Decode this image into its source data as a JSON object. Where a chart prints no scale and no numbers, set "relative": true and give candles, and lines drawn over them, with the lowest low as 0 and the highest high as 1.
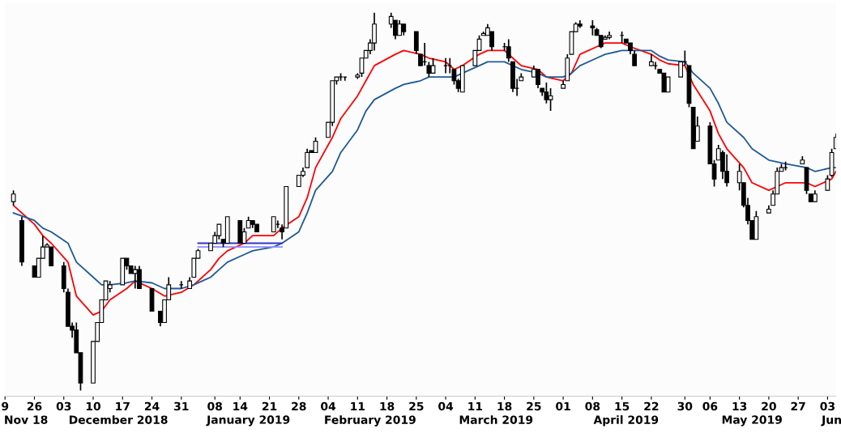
{
  "chart_data": {
    "type": "candlestick",
    "relative": true,
    "color": "#000000",
    "tick_labels": "x",
    "x": [
      "2018-11-21",
      "2018-11-23",
      "2018-11-26",
      "2018-11-27",
      "2018-11-28",
      "2018-11-29",
      "2018-11-30",
      "2018-12-03",
      "2018-12-04",
      "2018-12-05",
      "2018-12-06",
      "2018-12-07",
      "2018-12-10",
      "2018-12-11",
      "2018-12-12",
      "2018-12-13",
      "2018-12-14",
      "2018-12-17",
      "2018-12-18",
      "2018-12-19",
      "2018-12-20",
      "2018-12-21",
      "2018-12-24",
      "2018-12-26",
      "2018-12-27",
      "2018-12-28",
      "2018-12-31",
      "2019-01-02",
      "2019-01-03",
      "2019-01-04",
      "2019-01-07",
      "2019-01-08",
      "2019-01-09",
      "2019-01-10",
      "2019-01-11",
      "2019-01-14",
      "2019-01-15",
      "2019-01-16",
      "2019-01-17",
      "2019-01-18",
      "2019-01-22",
      "2019-01-23",
      "2019-01-24",
      "2019-01-25",
      "2019-01-28",
      "2019-01-29",
      "2019-01-30",
      "2019-01-31",
      "2019-02-01",
      "2019-02-04",
      "2019-02-05",
      "2019-02-06",
      "2019-02-07",
      "2019-02-08",
      "2019-02-11",
      "2019-02-12",
      "2019-02-13",
      "2019-02-14",
      "2019-02-15",
      "2019-02-19",
      "2019-02-20",
      "2019-02-21",
      "2019-02-22",
      "2019-02-25",
      "2019-02-26",
      "2019-02-27",
      "2019-02-28",
      "2019-03-01",
      "2019-03-04",
      "2019-03-05",
      "2019-03-06",
      "2019-03-07",
      "2019-03-08",
      "2019-03-11",
      "2019-03-12",
      "2019-03-13",
      "2019-03-14",
      "2019-03-15",
      "2019-03-18",
      "2019-03-19",
      "2019-03-20",
      "2019-03-21",
      "2019-03-22",
      "2019-03-25",
      "2019-03-26",
      "2019-03-27",
      "2019-03-28",
      "2019-03-29",
      "2019-04-01",
      "2019-04-02",
      "2019-04-03",
      "2019-04-04",
      "2019-04-05",
      "2019-04-08",
      "2019-04-09",
      "2019-04-10",
      "2019-04-11",
      "2019-04-12",
      "2019-04-15",
      "2019-04-16",
      "2019-04-17",
      "2019-04-18",
      "2019-04-22",
      "2019-04-23",
      "2019-04-24",
      "2019-04-25",
      "2019-04-26",
      "2019-04-29",
      "2019-04-30",
      "2019-05-01",
      "2019-05-02",
      "2019-05-03",
      "2019-05-06",
      "2019-05-07",
      "2019-05-08",
      "2019-05-09",
      "2019-05-10",
      "2019-05-13",
      "2019-05-14",
      "2019-05-15",
      "2019-05-16",
      "2019-05-17",
      "2019-05-20",
      "2019-05-21",
      "2019-05-22",
      "2019-05-23",
      "2019-05-24",
      "2019-05-28",
      "2019-05-29",
      "2019-05-30",
      "2019-05-31",
      "2019-06-03",
      "2019-06-04",
      "2019-06-05"
    ],
    "ohlc": [
      [
        0.5,
        0.53,
        0.49,
        0.52
      ],
      [
        0.45,
        0.46,
        0.33,
        0.34
      ],
      [
        0.33,
        0.33,
        0.3,
        0.3
      ],
      [
        0.3,
        0.35,
        0.3,
        0.35
      ],
      [
        0.35,
        0.41,
        0.35,
        0.38
      ],
      [
        0.38,
        0.39,
        0.38,
        0.385
      ],
      [
        0.38,
        0.38,
        0.33,
        0.33
      ],
      [
        0.33,
        0.34,
        0.26,
        0.27
      ],
      [
        0.26,
        0.27,
        0.17,
        0.17
      ],
      [
        0.17,
        0.18,
        0.14,
        0.16
      ],
      [
        0.16,
        0.18,
        0.1,
        0.1
      ],
      [
        0.1,
        0.1,
        0,
        0.02
      ],
      [
        0.02,
        0.13,
        0.02,
        0.13
      ],
      [
        0.13,
        0.18,
        0.13,
        0.18
      ],
      [
        0.18,
        0.24,
        0.18,
        0.24
      ],
      [
        0.24,
        0.29,
        0.24,
        0.29
      ],
      [
        0.27,
        0.29,
        0.26,
        0.28
      ],
      [
        0.28,
        0.35,
        0.28,
        0.35
      ],
      [
        0.35,
        0.35,
        0.32,
        0.33
      ],
      [
        0.33,
        0.33,
        0.31,
        0.31
      ],
      [
        0.31,
        0.33,
        0.27,
        0.32
      ],
      [
        0.32,
        0.33,
        0.27,
        0.27
      ],
      [
        0.27,
        0.27,
        0.21,
        0.21
      ],
      [
        0.21,
        0.21,
        0.17,
        0.18
      ],
      [
        0.18,
        0.24,
        0.18,
        0.24
      ],
      [
        0.24,
        0.3,
        0.24,
        0.28
      ],
      [
        0.28,
        0.29,
        0.27,
        0.28
      ],
      [
        0.27,
        0.3,
        0.27,
        0.29
      ],
      [
        0.3,
        0.35,
        0.3,
        0.35
      ],
      [
        0.35,
        0.375,
        0.35,
        0.37
      ],
      [
        0.37,
        0.39,
        0.37,
        0.39
      ],
      [
        0.39,
        0.42,
        0.39,
        0.41
      ],
      [
        0.41,
        0.44,
        0.4,
        0.44
      ],
      [
        0.4,
        0.4,
        0.38,
        0.39
      ],
      [
        0.39,
        0.46,
        0.39,
        0.46
      ],
      [
        0.45,
        0.45,
        0.39,
        0.39
      ],
      [
        0.39,
        0.43,
        0.39,
        0.42
      ],
      [
        0.43,
        0.46,
        0.43,
        0.45
      ],
      [
        0.45,
        0.45,
        0.43,
        0.44
      ],
      [
        0.44,
        0.44,
        0.42,
        0.42
      ],
      [
        0.42,
        0.46,
        0.42,
        0.46
      ],
      [
        0.44,
        0.45,
        0.43,
        0.44
      ],
      [
        0.43,
        0.44,
        0.4,
        0.42
      ],
      [
        0.43,
        0.54,
        0.43,
        0.54
      ],
      [
        0.54,
        0.57,
        0.54,
        0.57
      ],
      [
        0.57,
        0.59,
        0.565,
        0.58
      ],
      [
        0.59,
        0.64,
        0.59,
        0.63
      ],
      [
        0.635,
        0.635,
        0.63,
        0.63
      ],
      [
        0.63,
        0.67,
        0.63,
        0.66
      ],
      [
        0.67,
        0.71,
        0.67,
        0.71
      ],
      [
        0.71,
        0.82,
        0.7,
        0.82
      ],
      [
        0.82,
        0.83,
        0.81,
        0.83
      ],
      [
        0.83,
        0.84,
        0.82,
        0.83
      ],
      [
        0.83,
        0.83,
        0.82,
        0.83
      ],
      [
        0.83,
        0.84,
        0.825,
        0.835
      ],
      [
        0.84,
        0.88,
        0.83,
        0.88
      ],
      [
        0.88,
        0.9,
        0.88,
        0.9
      ],
      [
        0.9,
        0.93,
        0.89,
        0.92
      ],
      [
        0.92,
        1.0,
        0.9,
        0.97
      ],
      [
        0.97,
        1.0,
        0.96,
        0.99
      ],
      [
        0.98,
        0.98,
        0.93,
        0.94
      ],
      [
        0.94,
        0.98,
        0.94,
        0.97
      ],
      [
        0.97,
        0.97,
        0.94,
        0.95
      ],
      [
        0.95,
        0.95,
        0.89,
        0.9
      ],
      [
        0.89,
        0.89,
        0.86,
        0.86
      ],
      [
        0.87,
        0.92,
        0.86,
        0.87
      ],
      [
        0.86,
        0.87,
        0.83,
        0.84
      ],
      [
        0.84,
        0.88,
        0.84,
        0.86
      ],
      [
        0.86,
        0.88,
        0.84,
        0.86
      ],
      [
        0.86,
        0.88,
        0.84,
        0.86
      ],
      [
        0.85,
        0.85,
        0.81,
        0.82
      ],
      [
        0.82,
        0.825,
        0.79,
        0.8
      ],
      [
        0.79,
        0.86,
        0.79,
        0.86
      ],
      [
        0.86,
        0.9,
        0.86,
        0.9
      ],
      [
        0.9,
        0.94,
        0.9,
        0.93
      ],
      [
        0.94,
        0.95,
        0.94,
        0.945
      ],
      [
        0.94,
        0.97,
        0.94,
        0.96
      ],
      [
        0.95,
        0.95,
        0.9,
        0.91
      ],
      [
        0.91,
        0.92,
        0.9,
        0.91
      ],
      [
        0.91,
        0.93,
        0.87,
        0.88
      ],
      [
        0.87,
        0.87,
        0.79,
        0.8
      ],
      [
        0.8,
        0.825,
        0.78,
        0.8
      ],
      [
        0.82,
        0.84,
        0.82,
        0.83
      ],
      [
        0.83,
        0.86,
        0.83,
        0.85
      ],
      [
        0.85,
        0.85,
        0.8,
        0.81
      ],
      [
        0.8,
        0.8,
        0.78,
        0.79
      ],
      [
        0.79,
        0.815,
        0.76,
        0.77
      ],
      [
        0.77,
        0.8,
        0.74,
        0.78
      ],
      [
        0.8,
        0.82,
        0.8,
        0.81
      ],
      [
        0.82,
        0.89,
        0.82,
        0.88
      ],
      [
        0.89,
        0.95,
        0.89,
        0.95
      ],
      [
        0.95,
        0.975,
        0.95,
        0.97
      ],
      [
        0.97,
        0.98,
        0.96,
        0.965
      ],
      [
        0.965,
        0.98,
        0.94,
        0.96
      ],
      [
        0.955,
        0.96,
        0.94,
        0.94
      ],
      [
        0.94,
        0.94,
        0.906,
        0.91
      ],
      [
        0.93,
        0.94,
        0.93,
        0.935
      ],
      [
        0.935,
        0.95,
        0.93,
        0.94
      ],
      [
        0.94,
        0.95,
        0.92,
        0.94
      ],
      [
        0.93,
        0.93,
        0.92,
        0.92
      ],
      [
        0.92,
        0.92,
        0.89,
        0.9
      ],
      [
        0.89,
        0.9,
        0.86,
        0.86
      ],
      [
        0.86,
        0.89,
        0.86,
        0.87
      ],
      [
        0.86,
        0.87,
        0.85,
        0.86
      ],
      [
        0.85,
        0.85,
        0.84,
        0.84
      ],
      [
        0.84,
        0.84,
        0.79,
        0.79
      ],
      [
        0.79,
        0.83,
        0.79,
        0.83
      ],
      [
        0.83,
        0.87,
        0.83,
        0.87
      ],
      [
        0.87,
        0.9,
        0.86,
        0.87
      ],
      [
        0.86,
        0.86,
        0.75,
        0.76
      ],
      [
        0.75,
        0.75,
        0.64,
        0.64
      ],
      [
        0.66,
        0.725,
        0.66,
        0.7
      ],
      [
        0.7,
        0.71,
        0.6,
        0.6
      ],
      [
        0.6,
        0.61,
        0.54,
        0.56
      ],
      [
        0.61,
        0.65,
        0.61,
        0.64
      ],
      [
        0.63,
        0.635,
        0.56,
        0.58
      ],
      [
        0.58,
        0.625,
        0.54,
        0.55
      ],
      [
        0.55,
        0.6,
        0.53,
        0.58
      ],
      [
        0.55,
        0.55,
        0.485,
        0.49
      ],
      [
        0.49,
        0.51,
        0.44,
        0.45
      ],
      [
        0.45,
        0.45,
        0.4,
        0.4
      ],
      [
        0.4,
        0.475,
        0.4,
        0.46
      ],
      [
        0.47,
        0.49,
        0.47,
        0.48
      ],
      [
        0.49,
        0.53,
        0.49,
        0.52
      ],
      [
        0.52,
        0.59,
        0.52,
        0.58
      ],
      [
        0.58,
        0.6,
        0.58,
        0.59
      ],
      [
        0.59,
        0.606,
        0.583,
        0.59
      ],
      [
        0.6,
        0.62,
        0.6,
        0.61
      ],
      [
        0.59,
        0.59,
        0.52,
        0.53
      ],
      [
        0.52,
        0.52,
        0.5,
        0.5
      ],
      [
        0.5,
        0.53,
        0.5,
        0.52
      ],
      [
        0.53,
        0.57,
        0.53,
        0.56
      ],
      [
        0.57,
        0.64,
        0.565,
        0.63
      ],
      [
        0.64,
        0.68,
        0.64,
        0.67
      ]
    ],
    "series": [
      {
        "type": "line",
        "color": "#ff0000",
        "x": [
          "2018-11-21",
          "2018-11-26",
          "2018-11-28",
          "2018-11-30",
          "2018-12-04",
          "2018-12-06",
          "2018-12-10",
          "2018-12-12",
          "2018-12-14",
          "2018-12-18",
          "2018-12-20",
          "2018-12-24",
          "2018-12-27",
          "2018-12-31",
          "2019-01-03",
          "2019-01-07",
          "2019-01-09",
          "2019-01-11",
          "2019-01-15",
          "2019-01-17",
          "2019-01-22",
          "2019-01-24",
          "2019-01-28",
          "2019-01-30",
          "2019-02-01",
          "2019-02-05",
          "2019-02-07",
          "2019-02-11",
          "2019-02-13",
          "2019-02-15",
          "2019-02-20",
          "2019-02-22",
          "2019-02-26",
          "2019-02-28",
          "2019-03-04",
          "2019-03-06",
          "2019-03-08",
          "2019-03-12",
          "2019-03-14",
          "2019-03-18",
          "2019-03-20",
          "2019-03-22",
          "2019-03-26",
          "2019-03-28",
          "2019-04-01",
          "2019-04-03",
          "2019-04-05",
          "2019-04-09",
          "2019-04-11",
          "2019-04-15",
          "2019-04-17",
          "2019-04-22",
          "2019-04-24",
          "2019-04-26",
          "2019-04-30",
          "2019-05-02",
          "2019-05-06",
          "2019-05-08",
          "2019-05-10",
          "2019-05-14",
          "2019-05-16",
          "2019-05-20",
          "2019-05-22",
          "2019-05-24",
          "2019-05-29",
          "2019-05-31",
          "2019-06-04",
          "2019-06-05"
        ],
        "values": [
          0.49,
          0.44,
          0.41,
          0.39,
          0.34,
          0.25,
          0.2,
          0.21,
          0.24,
          0.27,
          0.29,
          0.27,
          0.25,
          0.26,
          0.28,
          0.32,
          0.35,
          0.37,
          0.39,
          0.41,
          0.41,
          0.43,
          0.46,
          0.51,
          0.59,
          0.67,
          0.72,
          0.78,
          0.82,
          0.86,
          0.89,
          0.9,
          0.89,
          0.88,
          0.87,
          0.85,
          0.86,
          0.89,
          0.9,
          0.9,
          0.88,
          0.86,
          0.85,
          0.83,
          0.82,
          0.84,
          0.89,
          0.91,
          0.92,
          0.92,
          0.91,
          0.89,
          0.875,
          0.865,
          0.86,
          0.81,
          0.74,
          0.68,
          0.64,
          0.59,
          0.55,
          0.53,
          0.54,
          0.55,
          0.55,
          0.54,
          0.56,
          0.58
        ]
      },
      {
        "type": "line",
        "color": "#1f5a96",
        "x": [
          "2018-11-21",
          "2018-11-26",
          "2018-11-28",
          "2018-11-30",
          "2018-12-04",
          "2018-12-06",
          "2018-12-10",
          "2018-12-12",
          "2018-12-14",
          "2018-12-18",
          "2018-12-20",
          "2018-12-24",
          "2018-12-27",
          "2018-12-31",
          "2019-01-03",
          "2019-01-07",
          "2019-01-09",
          "2019-01-11",
          "2019-01-15",
          "2019-01-17",
          "2019-01-22",
          "2019-01-24",
          "2019-01-28",
          "2019-01-30",
          "2019-02-01",
          "2019-02-05",
          "2019-02-07",
          "2019-02-11",
          "2019-02-13",
          "2019-02-15",
          "2019-02-20",
          "2019-02-22",
          "2019-02-26",
          "2019-02-28",
          "2019-03-04",
          "2019-03-06",
          "2019-03-08",
          "2019-03-12",
          "2019-03-14",
          "2019-03-18",
          "2019-03-20",
          "2019-03-22",
          "2019-03-26",
          "2019-03-28",
          "2019-04-01",
          "2019-04-03",
          "2019-04-05",
          "2019-04-09",
          "2019-04-11",
          "2019-04-15",
          "2019-04-17",
          "2019-04-22",
          "2019-04-24",
          "2019-04-26",
          "2019-04-30",
          "2019-05-02",
          "2019-05-06",
          "2019-05-08",
          "2019-05-10",
          "2019-05-14",
          "2019-05-16",
          "2019-05-20",
          "2019-05-22",
          "2019-05-24",
          "2019-05-29",
          "2019-05-31",
          "2019-06-04",
          "2019-06-05"
        ],
        "values": [
          0.47,
          0.45,
          0.43,
          0.42,
          0.39,
          0.34,
          0.3,
          0.28,
          0.28,
          0.285,
          0.29,
          0.285,
          0.27,
          0.27,
          0.28,
          0.3,
          0.32,
          0.34,
          0.36,
          0.37,
          0.38,
          0.39,
          0.42,
          0.47,
          0.53,
          0.58,
          0.63,
          0.69,
          0.74,
          0.77,
          0.8,
          0.81,
          0.82,
          0.83,
          0.83,
          0.83,
          0.84,
          0.86,
          0.87,
          0.87,
          0.86,
          0.85,
          0.84,
          0.83,
          0.83,
          0.84,
          0.86,
          0.88,
          0.89,
          0.9,
          0.9,
          0.9,
          0.885,
          0.875,
          0.87,
          0.84,
          0.8,
          0.76,
          0.71,
          0.67,
          0.64,
          0.61,
          0.605,
          0.6,
          0.59,
          0.58,
          0.59,
          0.59
        ]
      },
      {
        "type": "line",
        "color": "#3333cc",
        "x": [
          "2019-01-04",
          "2019-01-24"
        ],
        "values": [
          0.39,
          0.39
        ]
      },
      {
        "type": "line",
        "color": "#8c8cff",
        "x": [
          "2019-01-04",
          "2019-01-24"
        ],
        "values": [
          0.38,
          0.38
        ]
      }
    ],
    "xlim": [
      "2018-11-19",
      "2019-06-05"
    ],
    "xticks": [
      {
        "value": "2018-11-19",
        "label": "9"
      },
      {
        "value": "2018-11-26",
        "label": "26"
      },
      {
        "value": "2018-12-03",
        "label": "03"
      },
      {
        "value": "2018-12-10",
        "label": "10"
      },
      {
        "value": "2018-12-17",
        "label": "17"
      },
      {
        "value": "2018-12-24",
        "label": "24"
      },
      {
        "value": "2018-12-31",
        "label": "31"
      },
      {
        "value": "2019-01-08",
        "label": "08"
      },
      {
        "value": "2019-01-14",
        "label": "14"
      },
      {
        "value": "2019-01-21",
        "label": "21"
      },
      {
        "value": "2019-01-28",
        "label": "28"
      },
      {
        "value": "2019-02-04",
        "label": "04"
      },
      {
        "value": "2019-02-11",
        "label": "11"
      },
      {
        "value": "2019-02-18",
        "label": "18"
      },
      {
        "value": "2019-02-25",
        "label": "25"
      },
      {
        "value": "2019-03-04",
        "label": "04"
      },
      {
        "value": "2019-03-11",
        "label": "11"
      },
      {
        "value": "2019-03-18",
        "label": "18"
      },
      {
        "value": "2019-03-25",
        "label": "25"
      },
      {
        "value": "2019-04-01",
        "label": "01"
      },
      {
        "value": "2019-04-08",
        "label": "08"
      },
      {
        "value": "2019-04-15",
        "label": "15"
      },
      {
        "value": "2019-04-22",
        "label": "22"
      },
      {
        "value": "2019-04-30",
        "label": "30"
      },
      {
        "value": "2019-05-06",
        "label": "06"
      },
      {
        "value": "2019-05-13",
        "label": "13"
      },
      {
        "value": "2019-05-20",
        "label": "20"
      },
      {
        "value": "2019-05-27",
        "label": "27"
      },
      {
        "value": "2019-06-03",
        "label": "03"
      }
    ],
    "x2lim": [
      "2018-11-19",
      "2019-06-05"
    ],
    "x2ticks": [
      {
        "value": "2018-11-24",
        "label": "Nov 18"
      },
      {
        "value": "2018-12-16",
        "label": "December 2018"
      },
      {
        "value": "2019-01-16",
        "label": "January 2019"
      },
      {
        "value": "2019-02-14",
        "label": "February 2019"
      },
      {
        "value": "2019-03-16",
        "label": "March 2019"
      },
      {
        "value": "2019-04-16",
        "label": "April 2019"
      },
      {
        "value": "2019-05-16",
        "label": "May 2019"
      },
      {
        "value": "2019-06-04",
        "label": "Jun"
      }
    ]
  }
}
